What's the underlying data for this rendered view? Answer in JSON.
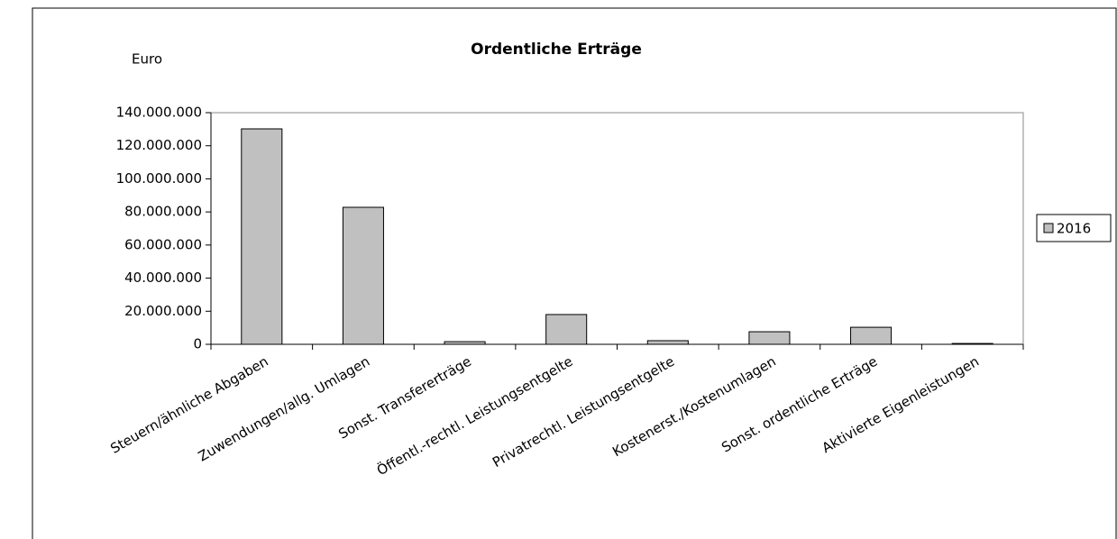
{
  "chart_data": {
    "type": "bar",
    "title": "Ordentliche Erträge",
    "y_label": "Euro",
    "categories": [
      "Steuern/ähnliche Abgaben",
      "Zuwendungen/allg. Umlagen",
      "Sonst. Transfererträge",
      "Öffentl.-rechtl. Leistungsentgelte",
      "Privatrechtl. Leistungsentgelte",
      "Kostenerst./Kostenumlagen",
      "Sonst. ordentliche Erträge",
      "Aktivierte Eigenleistungen"
    ],
    "series": [
      {
        "name": "2016",
        "color": "#c0c0c0",
        "values": [
          130200000,
          82800000,
          1600000,
          18000000,
          2200000,
          7600000,
          10300000,
          500000
        ]
      }
    ],
    "ylim": [
      0,
      140000000
    ],
    "yticks": [
      0,
      {
        "value": 20000000,
        "label": "20.000.000"
      },
      {
        "value": 40000000,
        "label": "40.000.000"
      },
      {
        "value": 60000000,
        "label": "60.000.000"
      },
      {
        "value": 80000000,
        "label": "80.000.000"
      },
      {
        "value": 100000000,
        "label": "100.000.000"
      },
      {
        "value": 120000000,
        "label": "120.000.000"
      },
      {
        "value": 140000000,
        "label": "140.000.000"
      }
    ],
    "grid": false,
    "legend": "right"
  }
}
